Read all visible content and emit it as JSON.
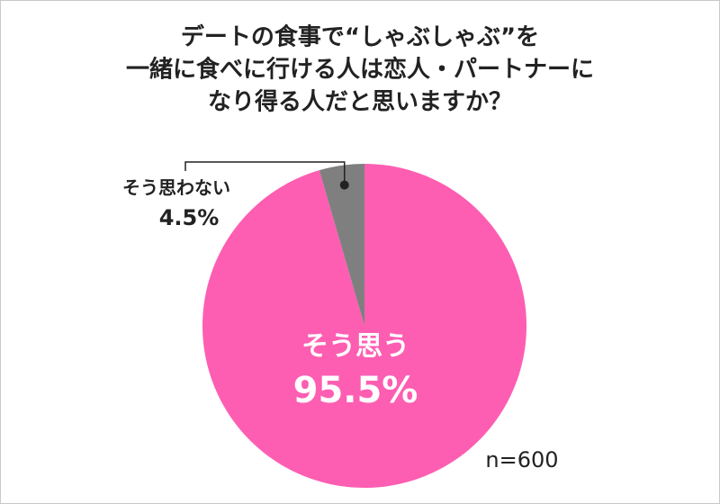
{
  "chart_data": {
    "type": "pie",
    "title": [
      "デートの食事で“しゃぶしゃぶ”を",
      "一緒に食べに行ける人は恋人・パートナーに",
      "なり得る人だと思いますか？"
    ],
    "categories": [
      "そう思う",
      "そう思わない"
    ],
    "values": [
      95.5,
      4.5
    ],
    "value_labels": [
      "95.5%",
      "4.5%"
    ],
    "colors": [
      "#fd5eb2",
      "#7f7f80"
    ],
    "note": "n=600"
  }
}
